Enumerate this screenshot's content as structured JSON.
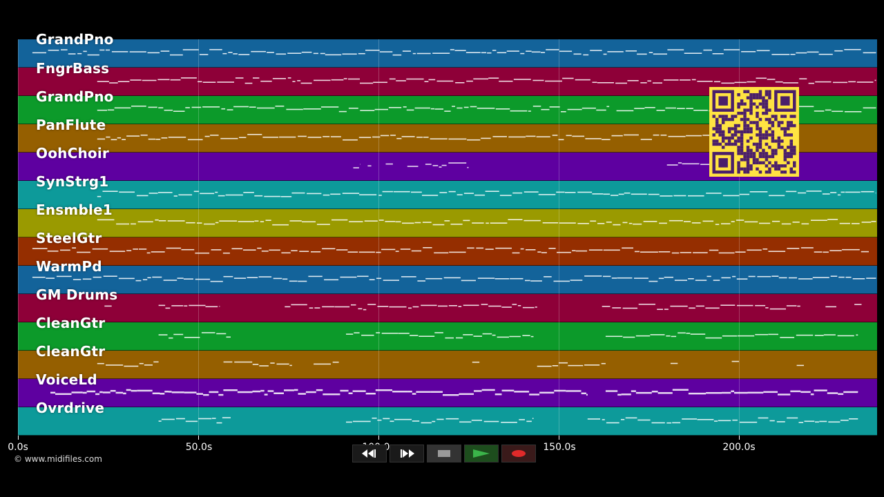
{
  "tracks": [
    {
      "name": "GrandPno",
      "color": "#13639a"
    },
    {
      "name": "FngrBass",
      "color": "#8e0038"
    },
    {
      "name": "GrandPno",
      "color": "#0c9a2a"
    },
    {
      "name": "PanFlute",
      "color": "#955f00"
    },
    {
      "name": "OohChoir",
      "color": "#5e00a0"
    },
    {
      "name": "SynStrg1",
      "color": "#0d9a9a"
    },
    {
      "name": "Ensmble1",
      "color": "#9a9a00"
    },
    {
      "name": "SteelGtr",
      "color": "#952e00"
    },
    {
      "name": "WarmPd",
      "color": "#13639a"
    },
    {
      "name": "GM Drums",
      "color": "#8e0038"
    },
    {
      "name": "CleanGtr",
      "color": "#0c9a2a"
    },
    {
      "name": "CleanGtr",
      "color": "#955f00"
    },
    {
      "name": "VoiceLd",
      "color": "#5e00a0"
    },
    {
      "name": "Ovrdrive",
      "color": "#0d9a9a"
    }
  ],
  "x_axis": {
    "ticks": [
      "0.0s",
      "50.0s",
      "100.0s",
      "150.0s",
      "200.0s"
    ],
    "tick_values": [
      0,
      50,
      100,
      150,
      200
    ],
    "max_seconds": 238.3
  },
  "copyright": "© www.midifiles.com",
  "controls": [
    {
      "name": "rewind-button",
      "icon": "rewind-icon"
    },
    {
      "name": "fast-forward-button",
      "icon": "fast-forward-icon"
    },
    {
      "name": "stop-button",
      "icon": "stop-icon"
    },
    {
      "name": "play-button",
      "icon": "play-icon"
    },
    {
      "name": "record-button",
      "icon": "record-icon"
    }
  ],
  "qr_code": {
    "color": "#ffe342",
    "icon": "qr-code-icon"
  },
  "note_segments": [
    [
      [
        4,
        238
      ]
    ],
    [
      [
        22,
        238
      ]
    ],
    [
      [
        22,
        164
      ],
      [
        166,
        192
      ],
      [
        216,
        238
      ]
    ],
    [
      [
        22,
        192
      ]
    ],
    [
      [
        93,
        95
      ],
      [
        97,
        98
      ],
      [
        102,
        104
      ],
      [
        108,
        111
      ],
      [
        113,
        125
      ],
      [
        180,
        192
      ]
    ],
    [
      [
        22,
        238
      ]
    ],
    [
      [
        22,
        238
      ]
    ],
    [
      [
        4,
        236
      ]
    ],
    [
      [
        4,
        238
      ]
    ],
    [
      [
        24,
        26
      ],
      [
        39,
        56
      ],
      [
        74,
        144
      ],
      [
        162,
        217
      ],
      [
        224,
        227
      ],
      [
        232,
        234
      ]
    ],
    [
      [
        39,
        59
      ],
      [
        91,
        143
      ],
      [
        163,
        233
      ]
    ],
    [
      [
        22,
        39
      ],
      [
        57,
        76
      ],
      [
        82,
        89
      ],
      [
        126,
        128
      ],
      [
        144,
        163
      ],
      [
        181,
        183
      ],
      [
        198,
        200
      ],
      [
        216,
        218
      ]
    ],
    [
      [
        9,
        158
      ],
      [
        163,
        233
      ]
    ],
    [
      [
        39,
        59
      ],
      [
        91,
        143
      ],
      [
        158,
        233
      ]
    ]
  ]
}
